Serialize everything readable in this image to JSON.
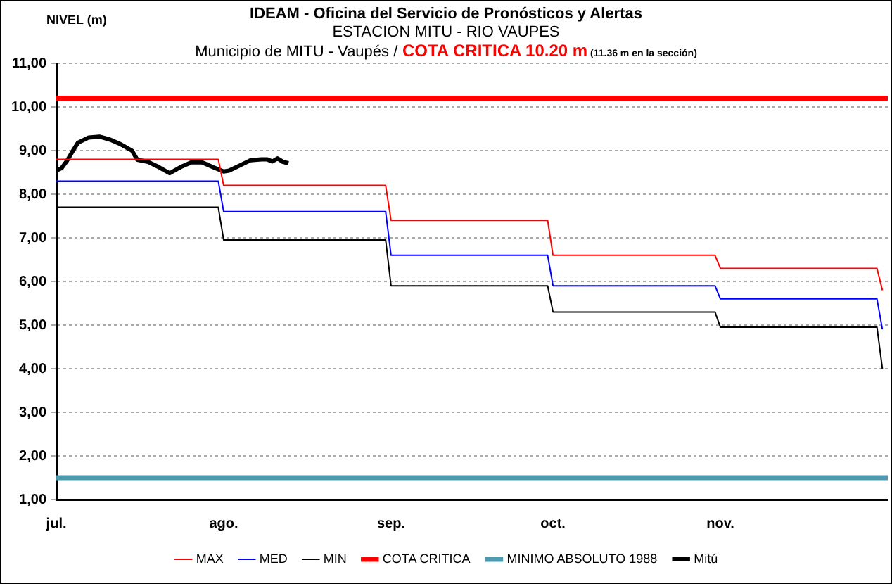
{
  "chart_data": {
    "type": "line",
    "title": "IDEAM - Oficina del Servicio de Pronósticos y Alertas",
    "subtitle": "ESTACION MITU - RIO VAUPES\nMunicipio de MITU - Vaupés /",
    "annotations": [
      "COTA CRITICA 10.20 m",
      "(11.36 m en la sección)"
    ],
    "ylabel": "NIVEL (m)",
    "x": [
      "--07-01",
      "--07-31",
      "--08-01",
      "--08-31",
      "--09-01",
      "--09-30",
      "--10-01",
      "--10-31",
      "--11-01",
      "--11-30",
      "--12-01"
    ],
    "series": [
      {
        "name": "MAX",
        "color": "#ff0000",
        "values": [
          8.8,
          8.8,
          8.2,
          8.2,
          7.4,
          7.4,
          6.6,
          6.6,
          6.3,
          6.3,
          5.8
        ]
      },
      {
        "name": "MED",
        "color": "#0000ff",
        "values": [
          8.3,
          8.3,
          7.6,
          7.6,
          6.6,
          6.6,
          5.9,
          5.9,
          5.6,
          5.6,
          4.9
        ]
      },
      {
        "name": "MIN",
        "color": "#000000",
        "values": [
          7.7,
          7.7,
          6.95,
          6.95,
          5.9,
          5.9,
          5.3,
          5.3,
          4.95,
          4.95,
          4.0
        ]
      },
      {
        "name": "COTA CRITICA",
        "color": "#ff0000",
        "x": [
          "--07-01",
          "--12-02"
        ],
        "values": [
          10.2,
          10.2
        ]
      },
      {
        "name": "MINIMO ABSOLUTO 1988",
        "color": "#4a9bb0",
        "x": [
          "--07-01",
          "--12-02"
        ],
        "values": [
          1.5,
          1.5
        ]
      },
      {
        "name": "Mitú",
        "color": "#000000",
        "x": [
          "--07-01",
          "--07-02",
          "--07-03",
          "--07-04",
          "--07-05",
          "--07-07",
          "--07-09",
          "--07-11",
          "--07-13",
          "--07-15",
          "--07-16",
          "--07-18",
          "--07-20",
          "--07-22",
          "--07-24",
          "--07-26",
          "--07-28",
          "--07-30",
          "--08-01",
          "--08-02",
          "--08-04",
          "--08-06",
          "--08-08",
          "--08-09",
          "--08-10",
          "--08-11",
          "--08-12",
          "--08-13"
        ],
        "values": [
          8.54,
          8.6,
          8.77,
          8.98,
          9.18,
          9.3,
          9.32,
          9.25,
          9.14,
          9.0,
          8.79,
          8.74,
          8.62,
          8.48,
          8.62,
          8.73,
          8.73,
          8.62,
          8.52,
          8.54,
          8.66,
          8.78,
          8.8,
          8.8,
          8.75,
          8.82,
          8.74,
          8.71
        ]
      }
    ],
    "xlim": [
      "--07-01",
      "--12-02"
    ],
    "xticks": [
      {
        "value": "--07-01",
        "label": "jul."
      },
      {
        "value": "--08-01",
        "label": "ago."
      },
      {
        "value": "--09-01",
        "label": "sep."
      },
      {
        "value": "--10-01",
        "label": "oct."
      },
      {
        "value": "--11-01",
        "label": "nov."
      }
    ],
    "ylim": [
      1,
      11
    ],
    "yticks": [
      {
        "value": 1,
        "label": "1,00"
      },
      {
        "value": 2,
        "label": "2,00"
      },
      {
        "value": 3,
        "label": "3,00"
      },
      {
        "value": 4,
        "label": "4,00"
      },
      {
        "value": 5,
        "label": "5,00"
      },
      {
        "value": 6,
        "label": "6,00"
      },
      {
        "value": 7,
        "label": "7,00"
      },
      {
        "value": 8,
        "label": "8,00"
      },
      {
        "value": 9,
        "label": "9,00"
      },
      {
        "value": 10,
        "label": "10,00"
      },
      {
        "value": 11,
        "label": "11,00"
      }
    ],
    "grid": "y",
    "legend": "bottom",
    "marker": "none",
    "line_style": "solid"
  }
}
